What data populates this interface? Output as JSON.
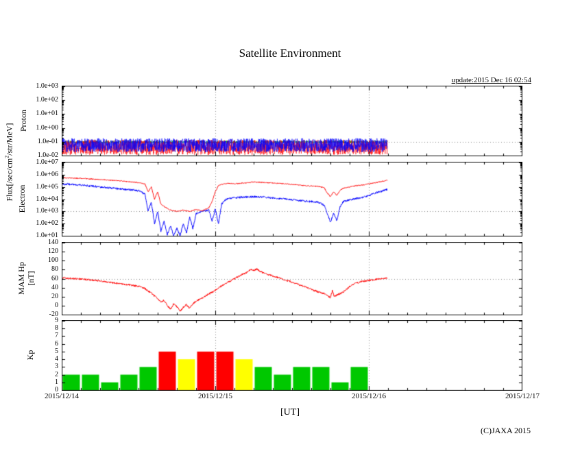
{
  "title": "Satellite Environment",
  "update_label": "update:2015 Dec 16 02:54",
  "copyright": "(C)JAXA 2015",
  "flux_axis_label": {
    "prefix": "Flux[/sec/cm",
    "sup": "2",
    "suffix": "/str/MeV]"
  },
  "panel_labels": {
    "proton": "Proton",
    "electron": "Electron",
    "hp_line1": "MAM Hp",
    "hp_line2": "[nT]",
    "kp": "Kp"
  },
  "xaxis": {
    "label": "[UT]",
    "tick_labels": [
      "2015/12/14",
      "2015/12/15",
      "2015/12/16",
      "2015/12/17"
    ],
    "range_hours": [
      0,
      72
    ],
    "gridline_hours": [
      24,
      48
    ]
  },
  "noise_seed": 20151216,
  "chart_data": [
    {
      "id": "proton",
      "type": "line",
      "ylabel": "Proton",
      "yscale": "log",
      "yunits": "Flux [/sec/cm2/str/MeV]",
      "ymin": -2,
      "ymax": 3,
      "yticks": [
        {
          "label": "1.0e+03",
          "v": 3
        },
        {
          "label": "1.0e+02",
          "v": 2
        },
        {
          "label": "1.0e+01",
          "v": 1
        },
        {
          "label": "1.0e+00",
          "v": 0
        },
        {
          "label": "1.0e-01",
          "v": -1
        },
        {
          "label": "1.0e-02",
          "v": -2
        }
      ],
      "hgrid": [
        -1
      ],
      "x_range_hours": [
        0,
        50.9
      ],
      "series": [
        {
          "name": "proton-green",
          "color": "#00a000",
          "width": 0.7,
          "step": 0.05,
          "noise": 0.1,
          "keypoints_log10": [
            [
              0,
              -1.02
            ],
            [
              50.9,
              -1.02
            ]
          ]
        },
        {
          "name": "proton-red",
          "color": "#ff0000",
          "width": 0.6,
          "step": 0.03,
          "noise": 0.55,
          "keypoints_log10": [
            [
              0,
              -1.4
            ],
            [
              50.9,
              -1.4
            ]
          ]
        },
        {
          "name": "proton-blue",
          "color": "#0000ff",
          "width": 0.6,
          "step": 0.03,
          "noise": 0.5,
          "keypoints_log10": [
            [
              0,
              -1.25
            ],
            [
              50.9,
              -1.25
            ]
          ]
        }
      ]
    },
    {
      "id": "electron",
      "type": "line",
      "ylabel": "Electron",
      "yscale": "log",
      "yunits": "Flux [/sec/cm2/str/MeV]",
      "ymin": 1,
      "ymax": 7,
      "yticks": [
        {
          "label": "1.0e+07",
          "v": 7
        },
        {
          "label": "1.0e+06",
          "v": 6
        },
        {
          "label": "1.0e+05",
          "v": 5
        },
        {
          "label": "1.0e+04",
          "v": 4
        },
        {
          "label": "1.0e+03",
          "v": 3
        },
        {
          "label": "1.0e+02",
          "v": 2
        },
        {
          "label": "1.0e+01",
          "v": 1
        }
      ],
      "hgrid": [
        3
      ],
      "x_range_hours": [
        0,
        50.9
      ],
      "series": [
        {
          "name": "electron-blue",
          "color": "#0000ff",
          "width": 1,
          "step": 0.05,
          "noise": 0.08,
          "keypoints_log10": [
            [
              0,
              5.25
            ],
            [
              3,
              5.15
            ],
            [
              6,
              5.0
            ],
            [
              9,
              4.85
            ],
            [
              12,
              4.7
            ],
            [
              13,
              4.4
            ],
            [
              13.5,
              3.0
            ],
            [
              14,
              3.8
            ],
            [
              14.5,
              2.0
            ],
            [
              15,
              3.0
            ],
            [
              15.5,
              1.4
            ],
            [
              16,
              2.2
            ],
            [
              16.5,
              1.1
            ],
            [
              17,
              1.8
            ],
            [
              17.5,
              1.0
            ],
            [
              18,
              1.6
            ],
            [
              18.5,
              1.0
            ],
            [
              19,
              2.0
            ],
            [
              19.5,
              1.2
            ],
            [
              20,
              2.6
            ],
            [
              20.5,
              1.6
            ],
            [
              21,
              2.8
            ],
            [
              22,
              3.0
            ],
            [
              23,
              3.1
            ],
            [
              23.5,
              2.2
            ],
            [
              24,
              3.2
            ],
            [
              24.5,
              2.0
            ],
            [
              25,
              3.6
            ],
            [
              25.5,
              3.9
            ],
            [
              26,
              4.05
            ],
            [
              27,
              4.1
            ],
            [
              28,
              4.15
            ],
            [
              30,
              4.2
            ],
            [
              32,
              4.15
            ],
            [
              34,
              4.05
            ],
            [
              36,
              3.95
            ],
            [
              38,
              3.85
            ],
            [
              40,
              3.75
            ],
            [
              41,
              3.5
            ],
            [
              41.5,
              2.8
            ],
            [
              42,
              2.1
            ],
            [
              42.5,
              2.9
            ],
            [
              43,
              2.2
            ],
            [
              43.5,
              3.4
            ],
            [
              44,
              3.8
            ],
            [
              45,
              3.95
            ],
            [
              46,
              4.05
            ],
            [
              47,
              4.15
            ],
            [
              48,
              4.3
            ],
            [
              49,
              4.5
            ],
            [
              50,
              4.65
            ],
            [
              50.9,
              4.8
            ]
          ]
        },
        {
          "name": "electron-red",
          "color": "#ff0000",
          "width": 1,
          "step": 0.05,
          "noise": 0.04,
          "keypoints_log10": [
            [
              0,
              5.75
            ],
            [
              3,
              5.7
            ],
            [
              6,
              5.6
            ],
            [
              9,
              5.5
            ],
            [
              12,
              5.35
            ],
            [
              13,
              5.25
            ],
            [
              13.5,
              4.6
            ],
            [
              14,
              5.0
            ],
            [
              14.5,
              4.0
            ],
            [
              15,
              4.6
            ],
            [
              15.5,
              3.6
            ],
            [
              16,
              3.4
            ],
            [
              17,
              3.1
            ],
            [
              18,
              3.0
            ],
            [
              19,
              3.1
            ],
            [
              20,
              3.0
            ],
            [
              21,
              3.15
            ],
            [
              22,
              3.05
            ],
            [
              23,
              3.3
            ],
            [
              23.5,
              3.8
            ],
            [
              24,
              4.6
            ],
            [
              24.5,
              5.1
            ],
            [
              25,
              5.2
            ],
            [
              26,
              5.3
            ],
            [
              27,
              5.25
            ],
            [
              28,
              5.3
            ],
            [
              30,
              5.4
            ],
            [
              32,
              5.35
            ],
            [
              34,
              5.3
            ],
            [
              36,
              5.2
            ],
            [
              38,
              5.1
            ],
            [
              40,
              5.05
            ],
            [
              41,
              4.95
            ],
            [
              41.5,
              4.5
            ],
            [
              42,
              4.2
            ],
            [
              42.5,
              4.6
            ],
            [
              43,
              4.3
            ],
            [
              43.5,
              4.7
            ],
            [
              44,
              4.9
            ],
            [
              45,
              5.0
            ],
            [
              46,
              5.1
            ],
            [
              47,
              5.15
            ],
            [
              48,
              5.25
            ],
            [
              49,
              5.35
            ],
            [
              50,
              5.45
            ],
            [
              50.9,
              5.55
            ]
          ]
        }
      ]
    },
    {
      "id": "hp",
      "type": "line",
      "ylabel": "MAM Hp [nT]",
      "yscale": "linear",
      "ymin": -20,
      "ymax": 140,
      "yticks": [
        {
          "label": "140",
          "v": 140
        },
        {
          "label": "120",
          "v": 120
        },
        {
          "label": "100",
          "v": 100
        },
        {
          "label": "80",
          "v": 80
        },
        {
          "label": "60",
          "v": 60
        },
        {
          "label": "40",
          "v": 40
        },
        {
          "label": "20",
          "v": 20
        },
        {
          "label": "0",
          "v": 0
        },
        {
          "label": "-20",
          "v": -20
        }
      ],
      "hgrid": [
        60
      ],
      "x_range_hours": [
        0,
        50.9
      ],
      "series": [
        {
          "name": "hp-red",
          "color": "#ff0000",
          "width": 1,
          "step": 0.05,
          "noise": 2,
          "keypoints_log10": [
            [
              0,
              62
            ],
            [
              2,
              60
            ],
            [
              4,
              58
            ],
            [
              6,
              55
            ],
            [
              8,
              51
            ],
            [
              10,
              47
            ],
            [
              12,
              43
            ],
            [
              13,
              38
            ],
            [
              14,
              28
            ],
            [
              15,
              15
            ],
            [
              15.5,
              8
            ],
            [
              16,
              12
            ],
            [
              16.5,
              0
            ],
            [
              17,
              -8
            ],
            [
              17.5,
              4
            ],
            [
              18,
              -2
            ],
            [
              18.5,
              -12
            ],
            [
              19,
              -4
            ],
            [
              19.5,
              2
            ],
            [
              20,
              -6
            ],
            [
              20.5,
              4
            ],
            [
              21,
              10
            ],
            [
              22,
              18
            ],
            [
              23,
              26
            ],
            [
              24,
              34
            ],
            [
              25,
              44
            ],
            [
              26,
              52
            ],
            [
              27,
              60
            ],
            [
              28,
              68
            ],
            [
              29,
              74
            ],
            [
              29.5,
              80
            ],
            [
              30,
              78
            ],
            [
              30.5,
              82
            ],
            [
              31,
              76
            ],
            [
              32,
              70
            ],
            [
              33,
              66
            ],
            [
              34,
              62
            ],
            [
              35,
              57
            ],
            [
              36,
              52
            ],
            [
              37,
              47
            ],
            [
              38,
              42
            ],
            [
              39,
              36
            ],
            [
              40,
              31
            ],
            [
              41,
              27
            ],
            [
              41.5,
              22
            ],
            [
              42,
              18
            ],
            [
              42.3,
              34
            ],
            [
              42.6,
              20
            ],
            [
              43,
              24
            ],
            [
              44,
              30
            ],
            [
              45,
              42
            ],
            [
              46,
              50
            ],
            [
              47,
              54
            ],
            [
              48,
              56
            ],
            [
              49,
              58
            ],
            [
              50,
              60
            ],
            [
              50.9,
              61
            ]
          ]
        }
      ]
    },
    {
      "id": "kp",
      "type": "bar",
      "ylabel": "Kp",
      "yscale": "linear",
      "ymin": 0,
      "ymax": 9,
      "yticks": [
        {
          "label": "9",
          "v": 9
        },
        {
          "label": "8",
          "v": 8
        },
        {
          "label": "7",
          "v": 7
        },
        {
          "label": "6",
          "v": 6
        },
        {
          "label": "5",
          "v": 5
        },
        {
          "label": "4",
          "v": 4
        },
        {
          "label": "3",
          "v": 3
        },
        {
          "label": "2",
          "v": 2
        },
        {
          "label": "1",
          "v": 1
        },
        {
          "label": "0",
          "v": 0
        }
      ],
      "hgrid": [],
      "start_hour": 0,
      "bar_hours": 3,
      "values": [
        2,
        2,
        1,
        2,
        3,
        5,
        4,
        5,
        5,
        4,
        3,
        2,
        3,
        3,
        1,
        3
      ],
      "thresholds": {
        "moderate": 4,
        "storm": 5
      },
      "colors": {
        "quiet": "#00c800",
        "moderate": "#ffff00",
        "storm": "#ff0000"
      }
    }
  ]
}
